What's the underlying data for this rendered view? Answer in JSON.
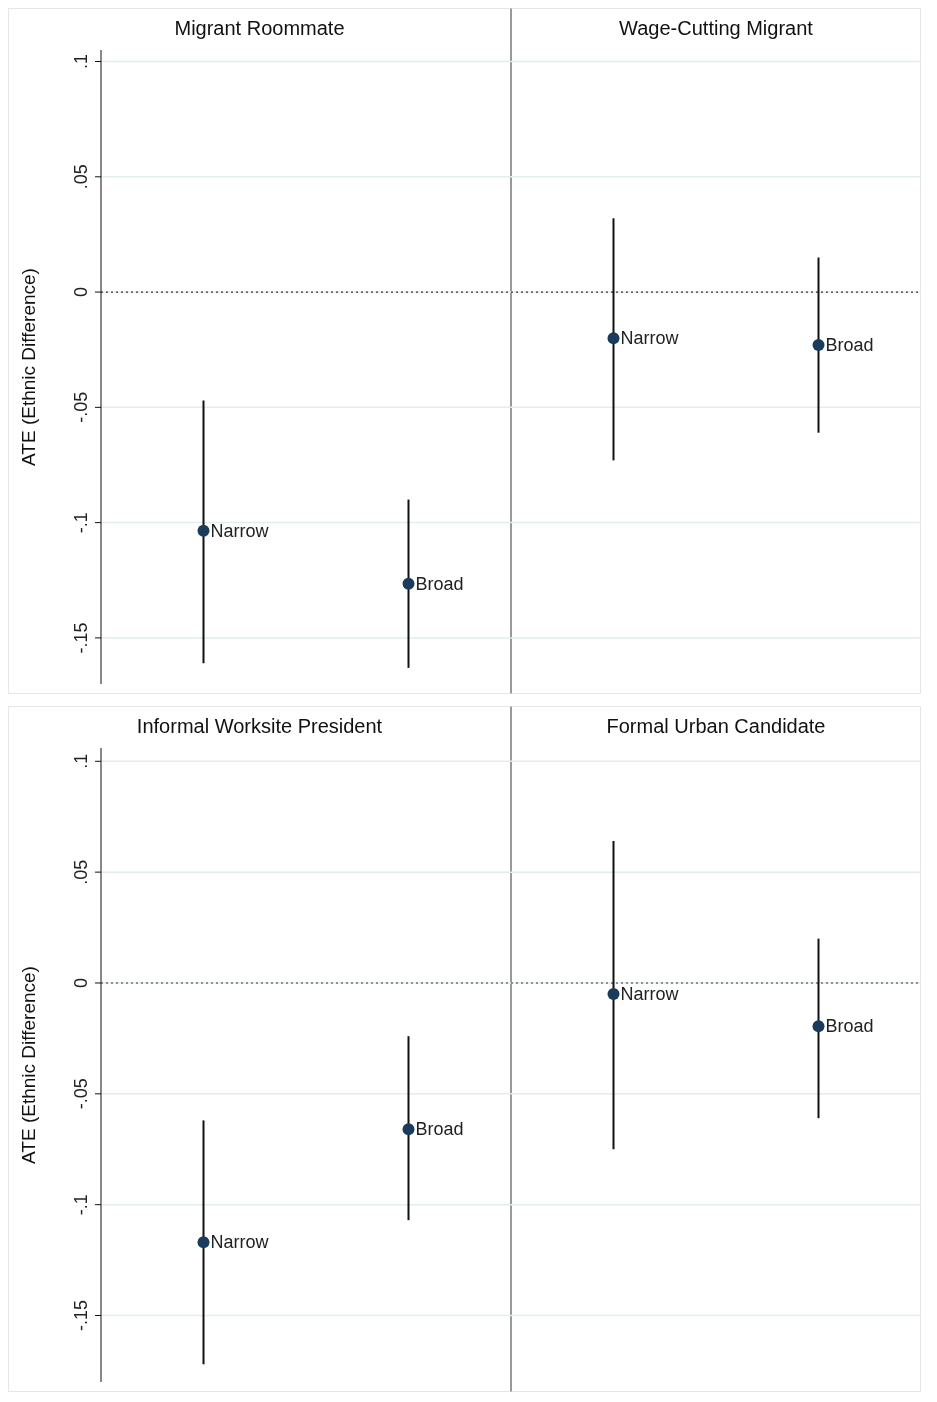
{
  "chart_data": [
    {
      "type": "scatter",
      "annotations": [
        "Migrant Roommate",
        "Wage-Cutting Migrant"
      ],
      "ylabel": "ATE (Ethnic Difference)",
      "categories": [
        "Narrow",
        "Broad",
        "Narrow",
        "Broad"
      ],
      "values": [
        -0.1035,
        -0.1265,
        -0.02,
        -0.023
      ],
      "errors": [
        [
          -0.161,
          -0.047
        ],
        [
          -0.163,
          -0.09
        ],
        [
          -0.073,
          0.032
        ],
        [
          -0.061,
          0.015
        ]
      ],
      "color": "#1a3b5c",
      "marker": "circle",
      "ylim": [
        -0.17,
        0.105
      ],
      "yticks": [
        {
          "value": -0.15,
          "label": "-.15"
        },
        {
          "value": -0.1,
          "label": "-.1"
        },
        {
          "value": -0.05,
          "label": "-.05"
        },
        0,
        {
          "value": 0.05,
          "label": ".05"
        },
        {
          "value": 0.1,
          "label": ".1"
        }
      ],
      "grid": "y",
      "tick_labels": "y",
      "ref_lines": [
        {
          "axis": "y",
          "value": 0,
          "line_style": "dotted"
        }
      ]
    },
    {
      "type": "scatter",
      "annotations": [
        "Informal Worksite President",
        "Formal Urban Candidate"
      ],
      "ylabel": "ATE (Ethnic Difference)",
      "categories": [
        "Narrow",
        "Broad",
        "Narrow",
        "Broad"
      ],
      "values": [
        -0.117,
        -0.066,
        -0.005,
        -0.0195
      ],
      "errors": [
        [
          -0.172,
          -0.062
        ],
        [
          -0.107,
          -0.024
        ],
        [
          -0.075,
          0.064
        ],
        [
          -0.061,
          0.02
        ]
      ],
      "color": "#1a3b5c",
      "marker": "circle",
      "ylim": [
        -0.18,
        0.106
      ],
      "yticks": [
        {
          "value": -0.15,
          "label": "-.15"
        },
        {
          "value": -0.1,
          "label": "-.1"
        },
        {
          "value": -0.05,
          "label": "-.05"
        },
        0,
        {
          "value": 0.05,
          "label": ".05"
        },
        {
          "value": 0.1,
          "label": ".1"
        }
      ],
      "grid": "y",
      "tick_labels": "y",
      "ref_lines": [
        {
          "axis": "y",
          "value": 0,
          "line_style": "dotted"
        }
      ]
    }
  ]
}
